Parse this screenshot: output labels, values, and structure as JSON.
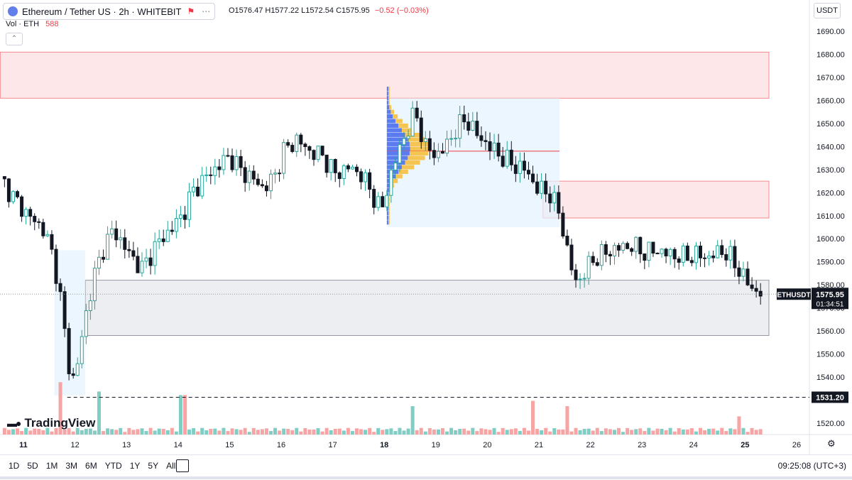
{
  "header": {
    "title": "Ethereum / Tether US · 2h · WHITEBIT",
    "ohlc": "O1576.47 H1577.22 L1572.54 C1575.95",
    "change": "−0.52 (−0.03%)",
    "vol_label": "Vol · ETH",
    "vol_value": "588",
    "currency": "USDT"
  },
  "branding": {
    "logo_text": "TradingView"
  },
  "toolbar": {
    "ranges": [
      "1D",
      "5D",
      "1M",
      "3M",
      "6M",
      "YTD",
      "1Y",
      "5Y",
      "All"
    ],
    "time": "09:25:08 (UTC+3)"
  },
  "colors": {
    "up": "#26a69a",
    "down": "#131722",
    "vol_up": "#7fcdc3",
    "vol_down": "#f7a4a4",
    "zone_red": "#fde7e8",
    "zone_gray": "#eceef2"
  },
  "chart_data": {
    "type": "candlestick",
    "symbol": "ETHUSDT",
    "interval": "2h",
    "ylim": [
      1515,
      1695
    ],
    "y_ticks": [
      1520,
      1530,
      1540,
      1550,
      1560,
      1570,
      1580,
      1590,
      1600,
      1610,
      1620,
      1630,
      1640,
      1650,
      1660,
      1670,
      1680,
      1690
    ],
    "y_tick_labels": [
      "1520.00",
      "",
      "1540.00",
      "1550.00",
      "1560.00",
      "1570.00",
      "1580.00",
      "1590.00",
      "1600.00",
      "1610.00",
      "1620.00",
      "1630.00",
      "1640.00",
      "1650.00",
      "1660.00",
      "1670.00",
      "1680.00",
      "1690.00"
    ],
    "x_labels": [
      "11",
      "12",
      "13",
      "14",
      "15",
      "16",
      "17",
      "18",
      "19",
      "20",
      "21",
      "22",
      "23",
      "24",
      "25",
      "26"
    ],
    "last_price": {
      "label": "ETHUSDT",
      "value": "1575.95",
      "countdown": "01:34:51",
      "y": 1575.95
    },
    "support_line": {
      "label": "1531.20",
      "y": 1531.2
    },
    "zones": [
      {
        "kind": "resistance",
        "y_from": 1661,
        "y_to": 1681,
        "x_from_day": 10.55,
        "x_to_day": 25.95
      },
      {
        "kind": "resistance",
        "y_from": 1609,
        "y_to": 1625,
        "x_from_day": 21.08,
        "x_to_day": 25.95
      },
      {
        "kind": "support",
        "y_from": 1558,
        "y_to": 1582,
        "x_from_day": 12.2,
        "x_to_day": 25.95
      }
    ],
    "close_path": [
      [
        10.55,
        1627
      ],
      [
        10.8,
        1618
      ],
      [
        11.1,
        1610
      ],
      [
        11.4,
        1604
      ],
      [
        11.6,
        1590
      ],
      [
        11.75,
        1570
      ],
      [
        11.85,
        1548
      ],
      [
        11.95,
        1538
      ],
      [
        12.05,
        1546
      ],
      [
        12.2,
        1566
      ],
      [
        12.35,
        1582
      ],
      [
        12.55,
        1596
      ],
      [
        12.75,
        1604
      ],
      [
        13.0,
        1595
      ],
      [
        13.3,
        1587
      ],
      [
        13.6,
        1598
      ],
      [
        13.9,
        1605
      ],
      [
        14.1,
        1611
      ],
      [
        14.3,
        1621
      ],
      [
        14.55,
        1627
      ],
      [
        14.8,
        1632
      ],
      [
        15.0,
        1636
      ],
      [
        15.2,
        1630
      ],
      [
        15.45,
        1626
      ],
      [
        15.65,
        1622
      ],
      [
        15.85,
        1626
      ],
      [
        16.05,
        1638
      ],
      [
        16.3,
        1643
      ],
      [
        16.55,
        1638
      ],
      [
        16.8,
        1636
      ],
      [
        17.05,
        1628
      ],
      [
        17.3,
        1631
      ],
      [
        17.55,
        1628
      ],
      [
        17.75,
        1620
      ],
      [
        17.95,
        1612
      ],
      [
        18.15,
        1630
      ],
      [
        18.35,
        1642
      ],
      [
        18.6,
        1655
      ],
      [
        18.8,
        1640
      ],
      [
        19.0,
        1636
      ],
      [
        19.2,
        1640
      ],
      [
        19.4,
        1648
      ],
      [
        19.6,
        1652
      ],
      [
        19.8,
        1645
      ],
      [
        20.0,
        1641
      ],
      [
        20.25,
        1636
      ],
      [
        20.5,
        1632
      ],
      [
        20.75,
        1630
      ],
      [
        20.95,
        1622
      ],
      [
        21.2,
        1620
      ],
      [
        21.4,
        1611
      ],
      [
        21.55,
        1595
      ],
      [
        21.7,
        1581
      ],
      [
        21.85,
        1584
      ],
      [
        22.05,
        1591
      ],
      [
        22.3,
        1594
      ],
      [
        22.55,
        1596
      ],
      [
        22.8,
        1597
      ],
      [
        23.05,
        1594
      ],
      [
        23.3,
        1595
      ],
      [
        23.55,
        1593
      ],
      [
        23.8,
        1592
      ],
      [
        24.05,
        1593
      ],
      [
        24.3,
        1592
      ],
      [
        24.55,
        1595
      ],
      [
        24.75,
        1591
      ],
      [
        24.95,
        1584
      ],
      [
        25.15,
        1578
      ],
      [
        25.35,
        1575.95
      ]
    ],
    "volume_peaks": [
      {
        "x_day": 11.75,
        "value": 1180
      },
      {
        "x_day": 12.5,
        "value": 970
      },
      {
        "x_day": 14.1,
        "value": 890
      },
      {
        "x_day": 18.55,
        "value": 640
      },
      {
        "x_day": 20.85,
        "value": 760
      },
      {
        "x_day": 21.55,
        "value": 640
      },
      {
        "x_day": 24.9,
        "value": 410
      }
    ],
    "volume_scale_max": 1200
  }
}
